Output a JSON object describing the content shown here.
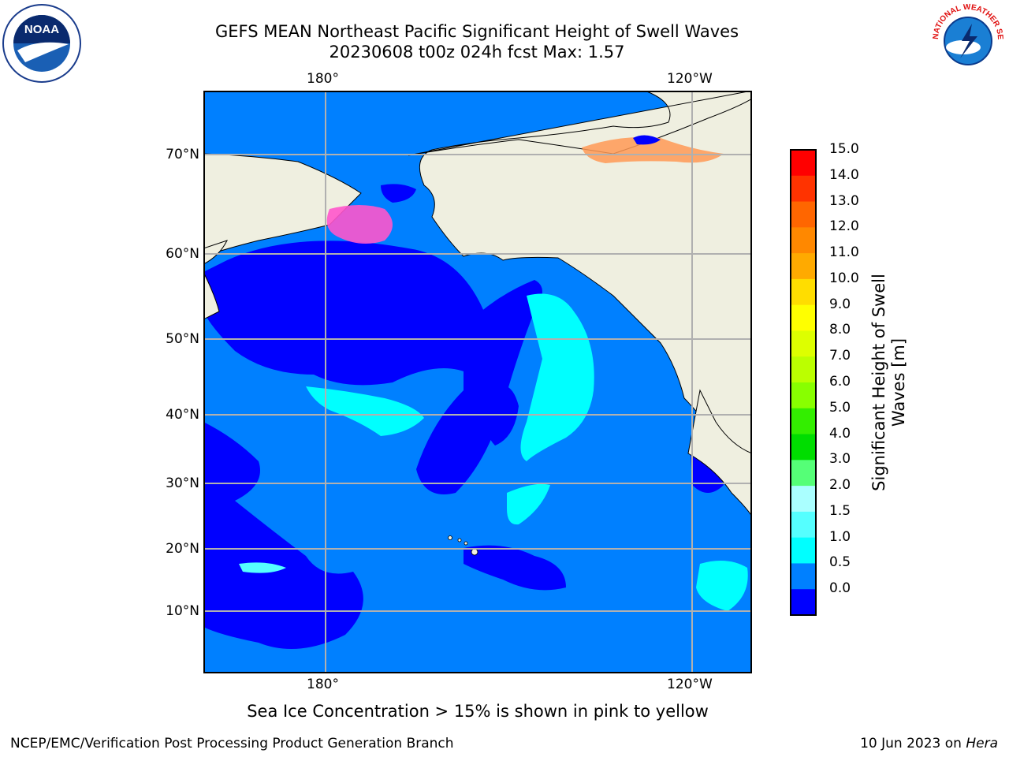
{
  "title": {
    "line1": "GEFS MEAN Northeast Pacific Significant Height of Swell Waves",
    "line2": "20230608 t00z 024h fcst   Max: 1.57"
  },
  "axes": {
    "lon_top": [
      "180°",
      "120°W"
    ],
    "lon_bottom": [
      "180°",
      "120°W"
    ],
    "lat_labels": [
      "70°N",
      "60°N",
      "50°N",
      "40°N",
      "30°N",
      "20°N",
      "10°N"
    ]
  },
  "colorbar": {
    "label_line1": "Significant Height of Swell",
    "label_line2": "Waves [m]",
    "ticks": [
      "15.0",
      "14.0",
      "13.0",
      "12.0",
      "11.0",
      "10.0",
      "9.0",
      "8.0",
      "7.0",
      "6.0",
      "5.0",
      "4.0",
      "3.0",
      "2.0",
      "1.5",
      "1.0",
      "0.5",
      "0.0"
    ],
    "colors": [
      "#ff0000",
      "#ff3300",
      "#ff6600",
      "#ff8800",
      "#ffaa00",
      "#ffdd00",
      "#ffff00",
      "#ddff00",
      "#bbff00",
      "#88ff00",
      "#33ee00",
      "#00dd00",
      "#55ff77",
      "#aaffff",
      "#55ffff",
      "#00ffff",
      "#0080ff",
      "#0000ff"
    ]
  },
  "caption": "Sea Ice Concentration > 15% is shown in pink to yellow",
  "footer": {
    "left": "NCEP/EMC/Verification Post Processing Product Generation Branch",
    "right_date": "10 Jun 2023 on ",
    "right_host": "Hera"
  },
  "logos": {
    "noaa": "NOAA",
    "nws": "NATIONAL WEATHER SERVICE"
  },
  "map_colors": {
    "ocean_mid": "#0080ff",
    "ocean_low": "#0000ff",
    "ocean_high": "#00ffff",
    "land": "#efefe0",
    "sea_ice": "#ff55cc"
  }
}
